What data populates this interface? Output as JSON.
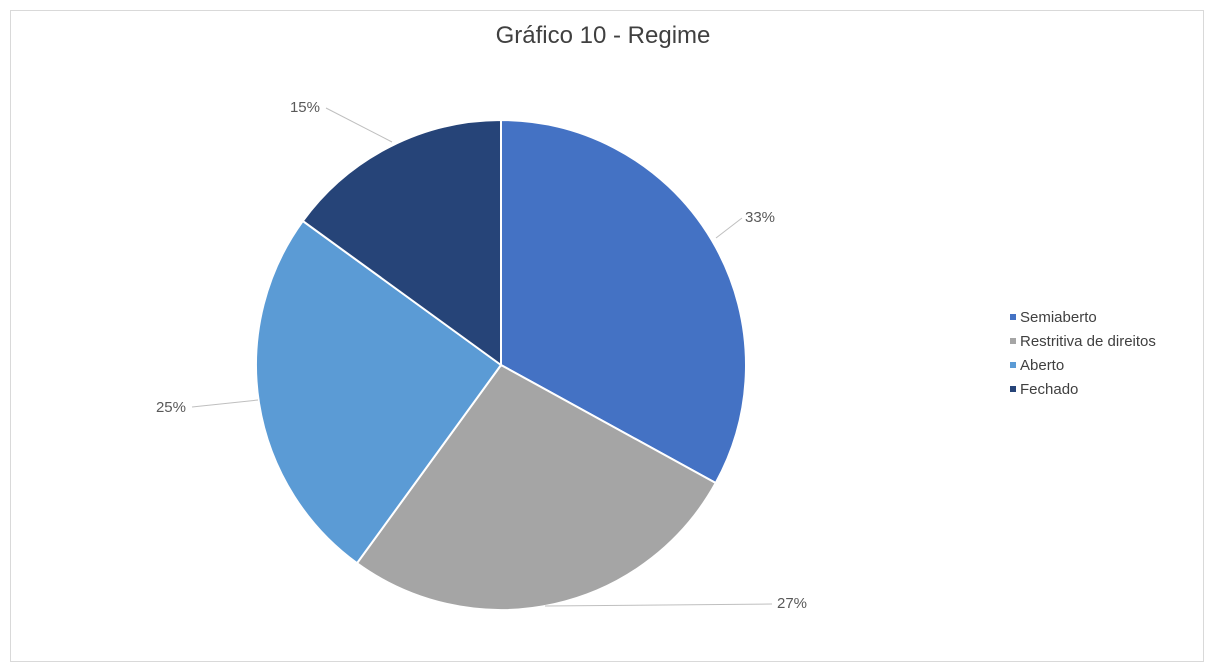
{
  "chart_data": {
    "type": "pie",
    "title": "Gráfico 10 - Regime",
    "categories": [
      "Semiaberto",
      "Restritiva de direitos",
      "Aberto",
      "Fechado"
    ],
    "values": [
      33,
      27,
      25,
      15
    ],
    "data_labels": [
      "33%",
      "27%",
      "25%",
      "15%"
    ],
    "colors": [
      "#4472c4",
      "#a5a5a5",
      "#5b9bd5",
      "#264478"
    ],
    "legend_position": "right"
  }
}
